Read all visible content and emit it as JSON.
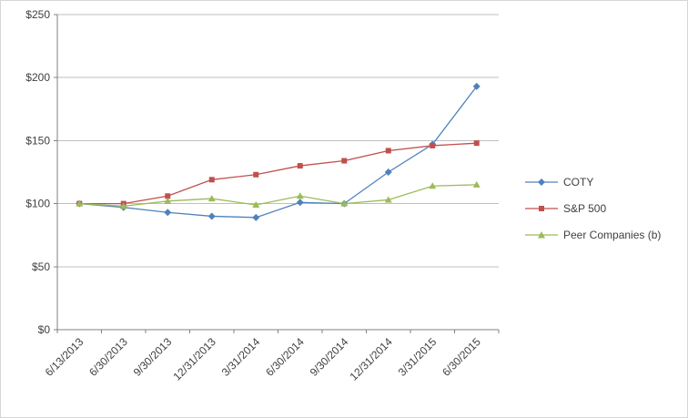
{
  "chart_data": {
    "type": "line",
    "categories": [
      "6/13/2013",
      "6/30/2013",
      "9/30/2013",
      "12/31/2013",
      "3/31/2014",
      "6/30/2014",
      "9/30/2014",
      "12/31/2014",
      "3/31/2015",
      "6/30/2015"
    ],
    "series": [
      {
        "name": "COTY",
        "color": "#4F81BD",
        "marker": "diamond",
        "values": [
          100,
          97,
          93,
          90,
          89,
          101,
          100,
          125,
          147,
          193
        ]
      },
      {
        "name": "S&P 500",
        "color": "#C0504D",
        "marker": "square",
        "values": [
          100,
          100,
          106,
          119,
          123,
          130,
          134,
          142,
          146,
          148
        ]
      },
      {
        "name": "Peer Companies (b)",
        "color": "#9BBB59",
        "marker": "triangle",
        "values": [
          100,
          98,
          102,
          104,
          99,
          106,
          100,
          103,
          114,
          115
        ]
      }
    ],
    "ylim": [
      0,
      250
    ],
    "ytick_step": 50,
    "ytick_labels": [
      "$0",
      "$50",
      "$100",
      "$150",
      "$200",
      "$250"
    ],
    "grid": true,
    "legend_position": "right",
    "colors": {
      "gridline": "#bfbfbf",
      "axis": "#808080",
      "text": "#3f3f3f",
      "background": "#ffffff",
      "border": "#d6d6d6"
    }
  }
}
